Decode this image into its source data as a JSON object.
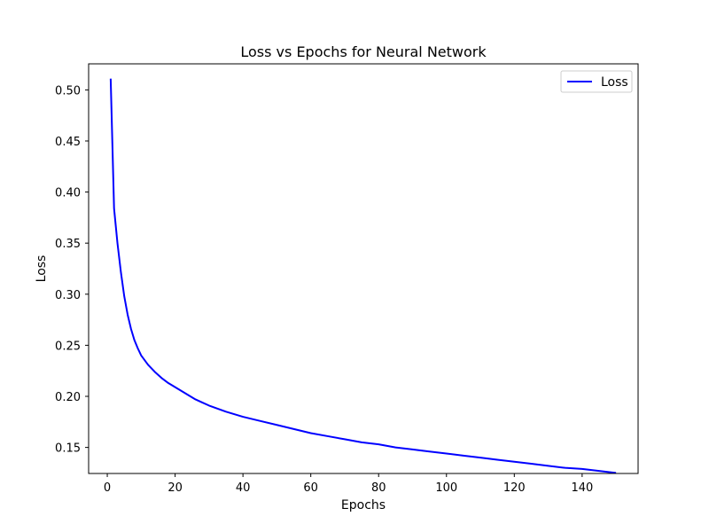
{
  "chart_data": {
    "type": "line",
    "title": "Loss vs Epochs for Neural Network",
    "xlabel": "Epochs",
    "ylabel": "Loss",
    "xlim": [
      -5.5,
      156.5
    ],
    "ylim": [
      0.1245,
      0.5255
    ],
    "xticks": [
      0,
      20,
      40,
      60,
      80,
      100,
      120,
      140
    ],
    "xtick_labels": [
      "0",
      "20",
      "40",
      "60",
      "80",
      "100",
      "120",
      "140"
    ],
    "yticks": [
      0.15,
      0.2,
      0.25,
      0.3,
      0.35,
      0.4,
      0.45,
      0.5
    ],
    "ytick_labels": [
      "0.15",
      "0.20",
      "0.25",
      "0.30",
      "0.35",
      "0.40",
      "0.45",
      "0.50"
    ],
    "grid": false,
    "legend": {
      "placement": "top-right",
      "entries": [
        "Loss"
      ]
    },
    "series": [
      {
        "name": "Loss",
        "color": "#0000ff",
        "x": [
          1,
          2,
          3,
          4,
          5,
          6,
          7,
          8,
          9,
          10,
          12,
          14,
          16,
          18,
          20,
          22,
          24,
          26,
          28,
          30,
          35,
          40,
          45,
          50,
          55,
          60,
          65,
          70,
          75,
          80,
          85,
          90,
          95,
          100,
          105,
          110,
          115,
          120,
          125,
          130,
          135,
          140,
          145,
          150
        ],
        "values": [
          0.511,
          0.384,
          0.35,
          0.322,
          0.298,
          0.28,
          0.266,
          0.255,
          0.247,
          0.24,
          0.231,
          0.224,
          0.218,
          0.213,
          0.209,
          0.205,
          0.201,
          0.197,
          0.194,
          0.191,
          0.185,
          0.18,
          0.176,
          0.172,
          0.168,
          0.164,
          0.161,
          0.158,
          0.155,
          0.153,
          0.15,
          0.148,
          0.146,
          0.144,
          0.142,
          0.14,
          0.138,
          0.136,
          0.134,
          0.132,
          0.13,
          0.129,
          0.127,
          0.125
        ]
      }
    ]
  }
}
